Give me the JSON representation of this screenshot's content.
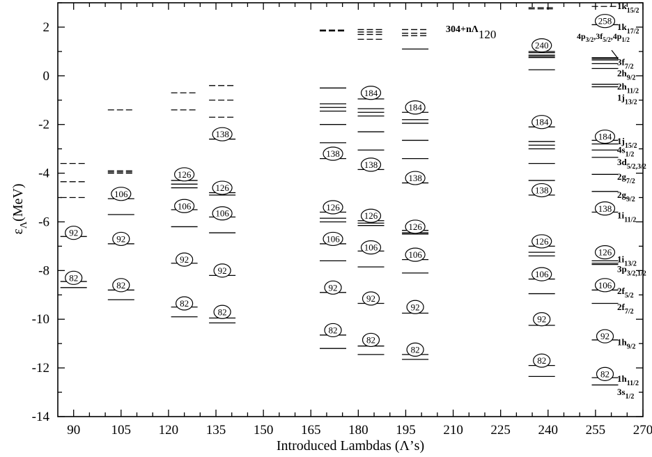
{
  "chart_data": {
    "type": "level-diagram",
    "title": "304+nΛ120",
    "title_parts": {
      "main": "304+nΛ",
      "sub": "120"
    },
    "xlabel": "Introduced Lambdas (Λ’s)",
    "ylabel": "εΛ(MeV)",
    "ylabel_parts": {
      "main": "ε",
      "sub": "Λ",
      "rest": "(MeV)"
    },
    "xlim": [
      85,
      270
    ],
    "ylim": [
      -14,
      3
    ],
    "xticks": [
      90,
      105,
      120,
      135,
      150,
      165,
      180,
      195,
      210,
      225,
      240,
      255,
      270
    ],
    "yticks": [
      2,
      0,
      -2,
      -4,
      -6,
      -8,
      -10,
      -12,
      -14
    ],
    "columns": [
      {
        "x": 90,
        "levels": [
          {
            "e": -3.6,
            "dashed": true
          },
          {
            "e": -4.35,
            "dashed": true
          },
          {
            "e": -5.0,
            "dashed": true
          },
          {
            "e": -6.6,
            "dashed": false
          },
          {
            "e": -8.45,
            "dashed": false
          },
          {
            "e": -8.7,
            "dashed": false
          }
        ],
        "labels": [
          {
            "text": "92",
            "e": -6.45
          },
          {
            "text": "82",
            "e": -8.3
          }
        ]
      },
      {
        "x": 105,
        "levels": [
          {
            "e": -1.4,
            "dashed": true
          },
          {
            "e": -3.9,
            "dashed": true
          },
          {
            "e": -3.95,
            "dashed": true
          },
          {
            "e": -4.0,
            "dashed": true
          },
          {
            "e": -5.05,
            "dashed": false
          },
          {
            "e": -5.7,
            "dashed": false
          },
          {
            "e": -6.9,
            "dashed": false
          },
          {
            "e": -8.8,
            "dashed": false
          },
          {
            "e": -9.2,
            "dashed": false
          }
        ],
        "labels": [
          {
            "text": "106",
            "e": -4.85
          },
          {
            "text": "92",
            "e": -6.7
          },
          {
            "text": "82",
            "e": -8.6
          }
        ]
      },
      {
        "x": 125,
        "levels": [
          {
            "e": -0.7,
            "dashed": true
          },
          {
            "e": -1.4,
            "dashed": true
          },
          {
            "e": -4.3,
            "dashed": false
          },
          {
            "e": -4.45,
            "dashed": false
          },
          {
            "e": -4.6,
            "dashed": false
          },
          {
            "e": -5.5,
            "dashed": false
          },
          {
            "e": -6.2,
            "dashed": false
          },
          {
            "e": -7.7,
            "dashed": false
          },
          {
            "e": -9.5,
            "dashed": false
          },
          {
            "e": -9.9,
            "dashed": false
          }
        ],
        "labels": [
          {
            "text": "126",
            "e": -4.05
          },
          {
            "text": "106",
            "e": -5.35
          },
          {
            "text": "92",
            "e": -7.55
          },
          {
            "text": "82",
            "e": -9.35
          }
        ]
      },
      {
        "x": 137,
        "levels": [
          {
            "e": -0.4,
            "dashed": true
          },
          {
            "e": -1.0,
            "dashed": true
          },
          {
            "e": -1.7,
            "dashed": true
          },
          {
            "e": -2.6,
            "dashed": false
          },
          {
            "e": -4.8,
            "dashed": false
          },
          {
            "e": -4.9,
            "dashed": false
          },
          {
            "e": -5.8,
            "dashed": false
          },
          {
            "e": -6.45,
            "dashed": false
          },
          {
            "e": -8.2,
            "dashed": false
          },
          {
            "e": -9.95,
            "dashed": false
          },
          {
            "e": -10.15,
            "dashed": false
          }
        ],
        "labels": [
          {
            "text": "138",
            "e": -2.4
          },
          {
            "text": "126",
            "e": -4.6
          },
          {
            "text": "106",
            "e": -5.65
          },
          {
            "text": "92",
            "e": -8.0
          },
          {
            "text": "82",
            "e": -9.7
          }
        ]
      },
      {
        "x": 172,
        "levels": [
          {
            "e": 1.88,
            "dashed": true
          },
          {
            "e": 1.86,
            "dashed": true
          },
          {
            "e": 1.84,
            "dashed": true
          },
          {
            "e": -0.5,
            "dashed": false
          },
          {
            "e": -1.15,
            "dashed": false
          },
          {
            "e": -1.3,
            "dashed": false
          },
          {
            "e": -1.45,
            "dashed": false
          },
          {
            "e": -2.0,
            "dashed": false
          },
          {
            "e": -2.75,
            "dashed": false
          },
          {
            "e": -3.4,
            "dashed": false
          },
          {
            "e": -5.6,
            "dashed": false
          },
          {
            "e": -5.85,
            "dashed": false
          },
          {
            "e": -6.0,
            "dashed": false
          },
          {
            "e": -6.9,
            "dashed": false
          },
          {
            "e": -7.6,
            "dashed": false
          },
          {
            "e": -8.9,
            "dashed": false
          },
          {
            "e": -10.65,
            "dashed": false
          },
          {
            "e": -11.2,
            "dashed": false
          }
        ],
        "labels": [
          {
            "text": "138",
            "e": -3.2
          },
          {
            "text": "126",
            "e": -5.4
          },
          {
            "text": "106",
            "e": -6.7
          },
          {
            "text": "92",
            "e": -8.7
          },
          {
            "text": "82",
            "e": -10.45
          }
        ]
      },
      {
        "x": 184,
        "levels": [
          {
            "e": 1.9,
            "dashed": true
          },
          {
            "e": 1.8,
            "dashed": true
          },
          {
            "e": 1.7,
            "dashed": true
          },
          {
            "e": 1.5,
            "dashed": true
          },
          {
            "e": -0.95,
            "dashed": false
          },
          {
            "e": -1.35,
            "dashed": false
          },
          {
            "e": -1.5,
            "dashed": false
          },
          {
            "e": -1.65,
            "dashed": false
          },
          {
            "e": -2.3,
            "dashed": false
          },
          {
            "e": -3.05,
            "dashed": false
          },
          {
            "e": -3.85,
            "dashed": false
          },
          {
            "e": -5.95,
            "dashed": false
          },
          {
            "e": -6.05,
            "dashed": false
          },
          {
            "e": -6.15,
            "dashed": false
          },
          {
            "e": -7.2,
            "dashed": false
          },
          {
            "e": -7.85,
            "dashed": false
          },
          {
            "e": -9.35,
            "dashed": false
          },
          {
            "e": -11.1,
            "dashed": false
          },
          {
            "e": -11.45,
            "dashed": false
          }
        ],
        "labels": [
          {
            "text": "184",
            "e": -0.7
          },
          {
            "text": "138",
            "e": -3.65
          },
          {
            "text": "126",
            "e": -5.75
          },
          {
            "text": "106",
            "e": -7.05
          },
          {
            "text": "92",
            "e": -9.15
          },
          {
            "text": "82",
            "e": -10.85
          }
        ]
      },
      {
        "x": 198,
        "levels": [
          {
            "e": 1.9,
            "dashed": true
          },
          {
            "e": 1.75,
            "dashed": true
          },
          {
            "e": 1.65,
            "dashed": true
          },
          {
            "e": 1.1,
            "dashed": false
          },
          {
            "e": -1.5,
            "dashed": false
          },
          {
            "e": -1.8,
            "dashed": false
          },
          {
            "e": -1.95,
            "dashed": false
          },
          {
            "e": -2.65,
            "dashed": false
          },
          {
            "e": -3.4,
            "dashed": false
          },
          {
            "e": -4.4,
            "dashed": false
          },
          {
            "e": -6.35,
            "dashed": false
          },
          {
            "e": -6.45,
            "dashed": false
          },
          {
            "e": -6.5,
            "dashed": false
          },
          {
            "e": -7.55,
            "dashed": false
          },
          {
            "e": -8.1,
            "dashed": false
          },
          {
            "e": -9.75,
            "dashed": false
          },
          {
            "e": -11.45,
            "dashed": false
          },
          {
            "e": -11.65,
            "dashed": false
          }
        ],
        "labels": [
          {
            "text": "184",
            "e": -1.3
          },
          {
            "text": "138",
            "e": -4.2
          },
          {
            "text": "126",
            "e": -6.2
          },
          {
            "text": "106",
            "e": -7.35
          },
          {
            "text": "92",
            "e": -9.5
          },
          {
            "text": "82",
            "e": -11.25
          }
        ]
      },
      {
        "x": 238,
        "levels": [
          {
            "e": 2.8,
            "dashed": true
          },
          {
            "e": 2.75,
            "dashed": true
          },
          {
            "e": 1.0,
            "dashed": false
          },
          {
            "e": 0.95,
            "dashed": false
          },
          {
            "e": 0.85,
            "dashed": false
          },
          {
            "e": 0.8,
            "dashed": false
          },
          {
            "e": 0.75,
            "dashed": false
          },
          {
            "e": 0.25,
            "dashed": false
          },
          {
            "e": -2.1,
            "dashed": false
          },
          {
            "e": -2.7,
            "dashed": false
          },
          {
            "e": -2.85,
            "dashed": false
          },
          {
            "e": -3.0,
            "dashed": false
          },
          {
            "e": -3.6,
            "dashed": false
          },
          {
            "e": -4.3,
            "dashed": false
          },
          {
            "e": -4.9,
            "dashed": false
          },
          {
            "e": -7.0,
            "dashed": false
          },
          {
            "e": -7.25,
            "dashed": false
          },
          {
            "e": -7.4,
            "dashed": false
          },
          {
            "e": -8.35,
            "dashed": false
          },
          {
            "e": -8.95,
            "dashed": false
          },
          {
            "e": -10.25,
            "dashed": false
          },
          {
            "e": -11.9,
            "dashed": false
          },
          {
            "e": -12.35,
            "dashed": false
          }
        ],
        "labels": [
          {
            "text": "240",
            "e": 1.25
          },
          {
            "text": "184",
            "e": -1.9
          },
          {
            "text": "138",
            "e": -4.7
          },
          {
            "text": "126",
            "e": -6.8
          },
          {
            "text": "106",
            "e": -8.15
          },
          {
            "text": "92",
            "e": -10.0
          },
          {
            "text": "82",
            "e": -11.7
          }
        ]
      },
      {
        "x": 258,
        "levels": [
          {
            "e": 2.85,
            "dashed": true
          },
          {
            "e": 2.1,
            "dashed": false
          },
          {
            "e": 0.75,
            "dashed": false
          },
          {
            "e": 0.7,
            "dashed": false
          },
          {
            "e": 0.65,
            "dashed": false
          },
          {
            "e": 0.5,
            "dashed": false
          },
          {
            "e": 0.3,
            "dashed": false
          },
          {
            "e": -0.35,
            "dashed": false
          },
          {
            "e": -0.45,
            "dashed": false
          },
          {
            "e": -2.65,
            "dashed": false
          },
          {
            "e": -2.8,
            "dashed": false
          },
          {
            "e": -3.05,
            "dashed": false
          },
          {
            "e": -3.35,
            "dashed": false
          },
          {
            "e": -4.05,
            "dashed": false
          },
          {
            "e": -4.75,
            "dashed": false
          },
          {
            "e": -5.6,
            "dashed": false
          },
          {
            "e": -7.6,
            "dashed": false
          },
          {
            "e": -7.7,
            "dashed": false
          },
          {
            "e": -7.75,
            "dashed": false
          },
          {
            "e": -8.8,
            "dashed": false
          },
          {
            "e": -9.35,
            "dashed": false
          },
          {
            "e": -10.85,
            "dashed": false
          },
          {
            "e": -12.4,
            "dashed": false
          },
          {
            "e": -12.7,
            "dashed": false
          }
        ],
        "labels": [
          {
            "text": "258",
            "e": 2.25
          },
          {
            "text": "184",
            "e": -2.5
          },
          {
            "text": "138",
            "e": -5.45
          },
          {
            "text": "126",
            "e": -7.25
          },
          {
            "text": "106",
            "e": -8.6
          },
          {
            "text": "92",
            "e": -10.7
          },
          {
            "text": "82",
            "e": -12.25
          }
        ]
      }
    ],
    "state_labels": [
      {
        "main": "1k",
        "sub": "15/2",
        "e": 2.85
      },
      {
        "main": "1k",
        "sub": "17/2",
        "e": 2.0
      },
      {
        "main": "3f",
        "sub": "7/2",
        "e": 0.55
      },
      {
        "main": "2h",
        "sub": "9/2",
        "e": 0.1
      },
      {
        "main": "2h",
        "sub": "11/2",
        "e": -0.45
      },
      {
        "main": "1j",
        "sub": "13/2",
        "e": -0.9
      },
      {
        "main": "1j",
        "sub": "15/2",
        "e": -2.7
      },
      {
        "main": "4s",
        "sub": "1/2",
        "e": -3.05
      },
      {
        "main": "3d",
        "sub": "5/2,3/2",
        "e": -3.55
      },
      {
        "main": "2g",
        "sub": "7/2",
        "e": -4.15
      },
      {
        "main": "2g",
        "sub": "9/2",
        "e": -4.9
      },
      {
        "main": "1i",
        "sub": "11/2",
        "e": -5.75
      },
      {
        "main": "1i",
        "sub": "13/2",
        "e": -7.55
      },
      {
        "main": "3p",
        "sub": "3/2,1/2",
        "e": -7.95
      },
      {
        "main": "2f",
        "sub": "5/2",
        "e": -8.85
      },
      {
        "main": "2f",
        "sub": "7/2",
        "e": -9.5
      },
      {
        "main": "1h",
        "sub": "9/2",
        "e": -10.95
      },
      {
        "main": "1h",
        "sub": "11/2",
        "e": -12.45
      },
      {
        "main": "3s",
        "sub": "1/2",
        "e": -13.0
      }
    ],
    "state_label_group": {
      "parts": [
        {
          "main": "4p",
          "sub": "3/2"
        },
        {
          "main": ",3f",
          "sub": "5/2"
        },
        {
          "main": ",4p",
          "sub": "1/2"
        }
      ]
    }
  }
}
